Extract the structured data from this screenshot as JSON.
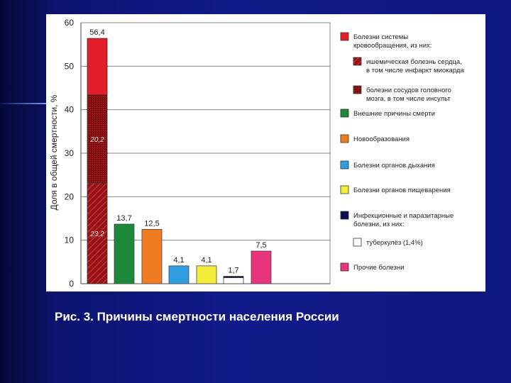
{
  "caption": "Рис. 3. Причины смертности населения России",
  "colors": {
    "circulatory": "#e31e2a",
    "ischemic_base": "#8a1a1a",
    "cerebro": "#7a1010",
    "external": "#1a8a3a",
    "neoplasms": "#f07c22",
    "respiratory": "#2e9ee0",
    "digestive": "#f4ee3a",
    "infectious": "#0a1050",
    "tuberculosis": "#ffffff",
    "other": "#e8347a"
  },
  "chart_data": {
    "type": "bar",
    "ylabel": "Доля в общей смертности, %",
    "ylim": [
      0,
      60
    ],
    "yticks": [
      "0",
      "10",
      "20",
      "30",
      "40",
      "50",
      "60"
    ],
    "grid": true,
    "legend_position": "right",
    "bars": [
      {
        "key": "circulatory",
        "value": 56.4,
        "label": "56,4",
        "segments": [
          {
            "key": "ischemic",
            "value": 23.2,
            "label": "23,2"
          },
          {
            "key": "cerebro",
            "value": 20.2,
            "label": "20,2"
          },
          {
            "key": "circulatory_rest",
            "value": 13.0,
            "label": ""
          }
        ]
      },
      {
        "key": "external",
        "value": 13.7,
        "label": "13,7"
      },
      {
        "key": "neoplasms",
        "value": 12.5,
        "label": "12,5"
      },
      {
        "key": "respiratory",
        "value": 4.1,
        "label": "4,1"
      },
      {
        "key": "digestive",
        "value": 4.1,
        "label": "4,1"
      },
      {
        "key": "infectious",
        "value": 1.7,
        "label": "1,7",
        "segments": [
          {
            "key": "tuberculosis",
            "value": 1.4,
            "label": ""
          },
          {
            "key": "infectious_rest",
            "value": 0.3,
            "label": ""
          }
        ]
      },
      {
        "key": "other",
        "value": 7.5,
        "label": "7,5"
      }
    ],
    "legend": [
      {
        "key": "circulatory",
        "lines": [
          "Болезни системы",
          "кровообращения, из них:"
        ]
      },
      {
        "key": "ischemic",
        "lines": [
          "ишемическая болезнь сердца,",
          "в том числе инфаркт миокарда"
        ]
      },
      {
        "key": "cerebro",
        "lines": [
          "болезни сосудов головного",
          "мозга, в том числе инсульт"
        ]
      },
      {
        "key": "external",
        "lines": [
          "Внешние причины смерти"
        ]
      },
      {
        "key": "neoplasms",
        "lines": [
          "Новообразования"
        ]
      },
      {
        "key": "respiratory",
        "lines": [
          "Болезни органов дыхания"
        ]
      },
      {
        "key": "digestive",
        "lines": [
          "Болезни органов пищеварения"
        ]
      },
      {
        "key": "infectious",
        "lines": [
          "Инфекционные и паразитарные",
          "болезни, из них:"
        ]
      },
      {
        "key": "tuberculosis",
        "lines": [
          "туберкулёз (1,4%)"
        ]
      },
      {
        "key": "other",
        "lines": [
          "Прочие болезни"
        ]
      }
    ]
  }
}
